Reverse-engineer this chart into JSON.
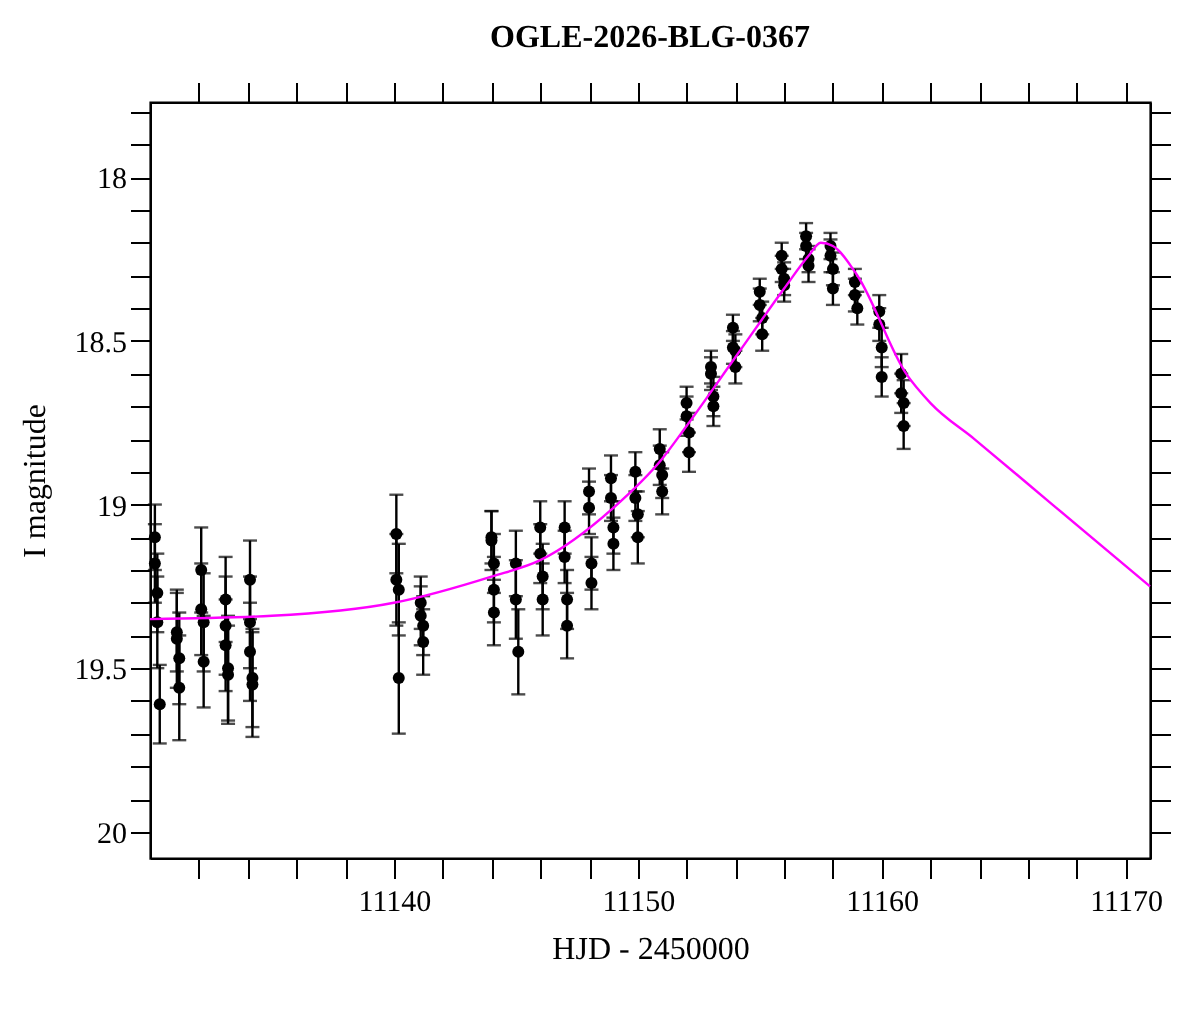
{
  "chart_data": {
    "type": "scatter",
    "title": "OGLE-2026-BLG-0367",
    "xlabel": "HJD - 2450000",
    "ylabel": "I magnitude",
    "xlim": [
      11130,
      11171
    ],
    "ylim": [
      20.08,
      17.77
    ],
    "xticks": [
      {
        "value": 11132,
        "label": null
      },
      {
        "value": 11134,
        "label": null
      },
      {
        "value": 11136,
        "label": null
      },
      {
        "value": 11138,
        "label": null
      },
      11140,
      {
        "value": 11142,
        "label": null
      },
      {
        "value": 11144,
        "label": null
      },
      {
        "value": 11146,
        "label": null
      },
      {
        "value": 11148,
        "label": null
      },
      11150,
      {
        "value": 11152,
        "label": null
      },
      {
        "value": 11154,
        "label": null
      },
      {
        "value": 11156,
        "label": null
      },
      {
        "value": 11158,
        "label": null
      },
      11160,
      {
        "value": 11162,
        "label": null
      },
      {
        "value": 11164,
        "label": null
      },
      {
        "value": 11166,
        "label": null
      },
      {
        "value": 11168,
        "label": null
      },
      11170
    ],
    "yticks": [
      {
        "value": 17.8,
        "label": null
      },
      {
        "value": 17.9,
        "label": null
      },
      18,
      {
        "value": 18.1,
        "label": null
      },
      {
        "value": 18.2,
        "label": null
      },
      {
        "value": 18.3,
        "label": null
      },
      {
        "value": 18.4,
        "label": null
      },
      18.5,
      {
        "value": 18.6,
        "label": null
      },
      {
        "value": 18.7,
        "label": null
      },
      {
        "value": 18.8,
        "label": null
      },
      {
        "value": 18.9,
        "label": null
      },
      19,
      {
        "value": 19.1,
        "label": null
      },
      {
        "value": 19.2,
        "label": null
      },
      {
        "value": 19.3,
        "label": null
      },
      {
        "value": 19.4,
        "label": null
      },
      19.5,
      {
        "value": 19.6,
        "label": null
      },
      {
        "value": 19.7,
        "label": null
      },
      {
        "value": 19.8,
        "label": null
      },
      {
        "value": 19.9,
        "label": null
      },
      20
    ],
    "grid": false,
    "marker": "circle",
    "series": [
      {
        "type": "scatter",
        "color": "#000000",
        "x": [
          11130.2,
          11130.2,
          11130.3,
          11130.3,
          11130.4,
          11131.1,
          11131.1,
          11131.2,
          11131.2,
          11132.1,
          11132.1,
          11132.2,
          11132.2,
          11133.1,
          11133.1,
          11133.1,
          11133.2,
          11133.2,
          11134.1,
          11134.1,
          11134.1,
          11134.2,
          11134.2,
          11140.1,
          11140.1,
          11140.2,
          11140.2,
          11141.1,
          11141.1,
          11141.2,
          11141.2,
          11144.0,
          11144.0,
          11144.1,
          11144.1,
          11144.1,
          11145.0,
          11145.0,
          11145.1,
          11146.0,
          11146.0,
          11146.1,
          11146.1,
          11147.0,
          11147.0,
          11147.1,
          11147.1,
          11148.0,
          11148.0,
          11148.1,
          11148.1,
          11148.9,
          11148.9,
          11149.0,
          11149.0,
          11149.9,
          11149.9,
          11150.0,
          11150.0,
          11150.9,
          11150.9,
          11151.0,
          11151.0,
          11152.0,
          11152.0,
          11152.1,
          11152.1,
          11153.0,
          11153.0,
          11153.1,
          11153.1,
          11153.9,
          11153.9,
          11154.0,
          11154.0,
          11155.0,
          11155.0,
          11155.1,
          11155.1,
          11155.9,
          11155.9,
          11156.0,
          11156.0,
          11156.9,
          11156.9,
          11157.0,
          11157.0,
          11157.9,
          11157.9,
          11158.0,
          11158.0,
          11158.9,
          11158.9,
          11159.0,
          11159.9,
          11159.9,
          11160.0,
          11160.0,
          11160.8,
          11160.8,
          11160.9,
          11160.9
        ],
        "values": [
          19.1,
          19.18,
          19.27,
          19.36,
          19.61,
          19.39,
          19.41,
          19.47,
          19.56,
          19.2,
          19.32,
          19.36,
          19.48,
          19.29,
          19.37,
          19.43,
          19.5,
          19.52,
          19.23,
          19.36,
          19.45,
          19.53,
          19.55,
          19.09,
          19.23,
          19.26,
          19.53,
          19.3,
          19.34,
          19.37,
          19.42,
          19.1,
          19.11,
          19.18,
          19.26,
          19.33,
          19.18,
          19.29,
          19.45,
          19.07,
          19.15,
          19.22,
          19.29,
          19.07,
          19.16,
          19.29,
          19.37,
          18.96,
          19.01,
          19.18,
          19.24,
          18.92,
          18.98,
          19.07,
          19.12,
          18.9,
          18.98,
          19.03,
          19.1,
          18.83,
          18.88,
          18.91,
          18.96,
          18.69,
          18.73,
          18.78,
          18.84,
          18.58,
          18.6,
          18.67,
          18.7,
          18.46,
          18.52,
          18.53,
          18.58,
          18.35,
          18.39,
          18.43,
          18.48,
          18.24,
          18.28,
          18.31,
          18.33,
          18.18,
          18.21,
          18.25,
          18.27,
          18.21,
          18.24,
          18.28,
          18.34,
          18.32,
          18.36,
          18.4,
          18.41,
          18.45,
          18.52,
          18.61,
          18.6,
          18.66,
          18.69,
          18.76
        ],
        "errors": [
          0.1,
          0.12,
          0.12,
          0.14,
          0.12,
          0.12,
          0.15,
          0.14,
          0.16,
          0.13,
          0.14,
          0.15,
          0.14,
          0.13,
          0.15,
          0.14,
          0.16,
          0.15,
          0.12,
          0.14,
          0.15,
          0.15,
          0.16,
          0.12,
          0.14,
          0.14,
          0.17,
          0.08,
          0.09,
          0.09,
          0.1,
          0.08,
          0.09,
          0.09,
          0.1,
          0.1,
          0.1,
          0.12,
          0.13,
          0.08,
          0.09,
          0.1,
          0.11,
          0.08,
          0.08,
          0.09,
          0.1,
          0.07,
          0.08,
          0.08,
          0.08,
          0.07,
          0.07,
          0.08,
          0.08,
          0.06,
          0.07,
          0.07,
          0.08,
          0.06,
          0.06,
          0.07,
          0.07,
          0.05,
          0.06,
          0.06,
          0.06,
          0.05,
          0.05,
          0.06,
          0.06,
          0.04,
          0.05,
          0.05,
          0.05,
          0.04,
          0.05,
          0.05,
          0.05,
          0.04,
          0.04,
          0.05,
          0.05,
          0.04,
          0.04,
          0.04,
          0.05,
          0.04,
          0.05,
          0.05,
          0.05,
          0.04,
          0.05,
          0.05,
          0.05,
          0.05,
          0.06,
          0.06,
          0.06,
          0.06,
          0.07,
          0.07
        ]
      },
      {
        "type": "line",
        "color": "#ff00ff",
        "line_style": "solid",
        "marker": "none",
        "x": [
          11130,
          11135,
          11140,
          11144,
          11146,
          11149,
          11151,
          11152,
          11154,
          11156,
          11157,
          11157.5,
          11158,
          11159,
          11161,
          11162,
          11163.8,
          11167,
          11171
        ],
        "values": [
          19.35,
          19.34,
          19.3,
          19.22,
          19.17,
          19.01,
          18.86,
          18.76,
          18.55,
          18.34,
          18.24,
          18.2,
          18.21,
          18.3,
          18.6,
          18.69,
          18.8,
          19.0,
          19.25
        ]
      }
    ]
  }
}
